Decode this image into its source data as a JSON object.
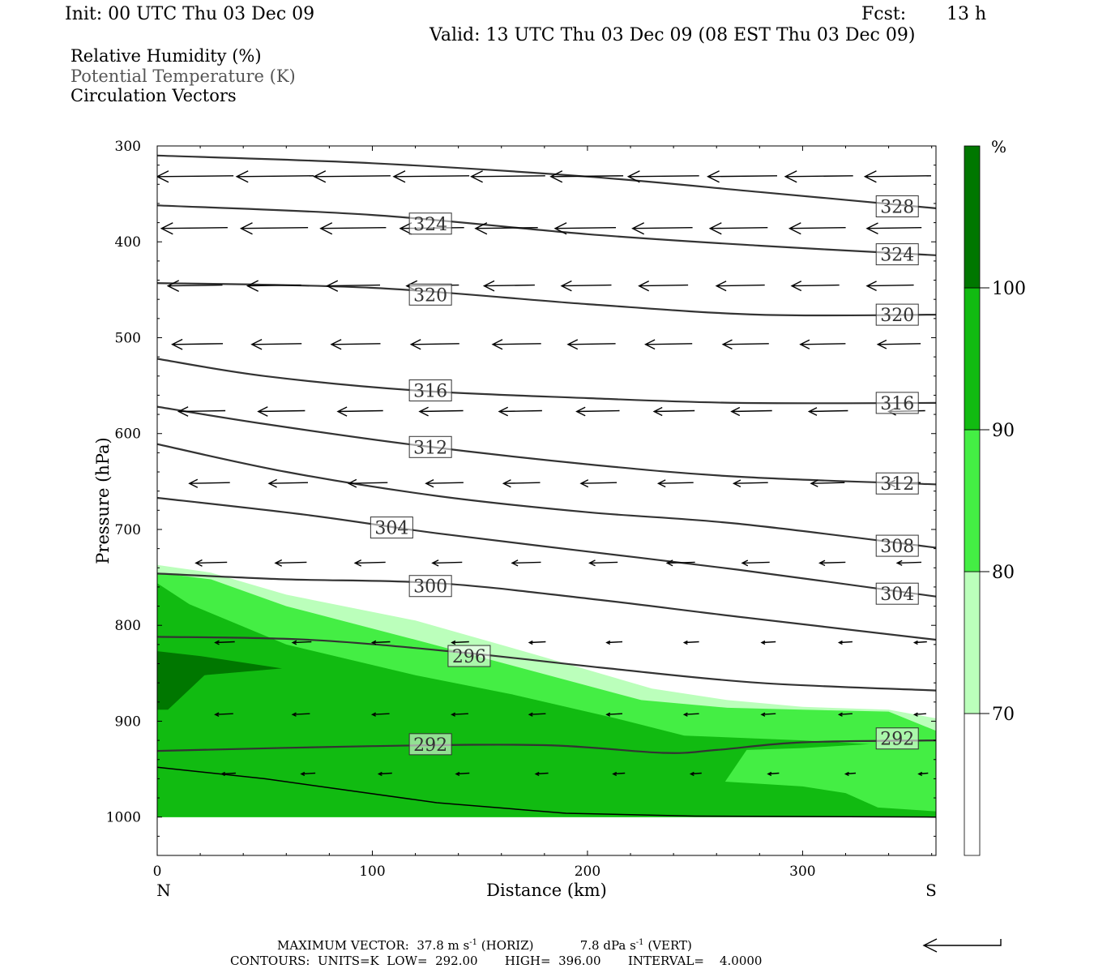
{
  "header": {
    "init": "Init: 00 UTC Thu 03 Dec 09",
    "fcst_label": "Fcst:",
    "fcst_value": "13 h",
    "valid": "Valid: 13 UTC Thu 03 Dec 09 (08 EST Thu 03 Dec 09)"
  },
  "legend_lines": {
    "rh": "Relative Humidity (%)",
    "theta": "Potential Temperature (K)",
    "vectors": "Circulation Vectors"
  },
  "footer": {
    "max_vector_label": "MAXIMUM VECTOR:",
    "horiz_value": "37.8 m s",
    "horiz_exp": "-1",
    "horiz_tag": "(HORIZ)",
    "vert_value": "7.8 dPa s",
    "vert_exp": "-1",
    "vert_tag": "(VERT)",
    "contours_line": "CONTOURS:  UNITS=K  LOW=  292.00       HIGH=  396.00       INTERVAL=    4.0000"
  },
  "chart_data": {
    "type": "cross-section",
    "xlabel": "Distance (km)",
    "ylabel": "Pressure (hPa)",
    "xlim": [
      0,
      362
    ],
    "ylim": [
      300,
      1040
    ],
    "x_ticks": [
      0,
      100,
      200,
      300
    ],
    "y_ticks": [
      300,
      400,
      500,
      600,
      700,
      800,
      900,
      1000
    ],
    "x_end_labels": {
      "left": "N",
      "right": "S"
    },
    "colorbar": {
      "unit": "%",
      "levels": [
        70,
        80,
        90,
        100
      ],
      "colors": [
        "#ffffff",
        "#bbffbb",
        "#44ee44",
        "#11bb11",
        "#007700"
      ]
    },
    "rh_fill": [
      {
        "level": "70-80",
        "color": "#bbffbb",
        "points": [
          [
            0,
            737
          ],
          [
            25,
            745
          ],
          [
            60,
            768
          ],
          [
            120,
            795
          ],
          [
            175,
            830
          ],
          [
            230,
            866
          ],
          [
            265,
            878
          ],
          [
            300,
            885
          ],
          [
            340,
            888
          ],
          [
            362,
            897
          ],
          [
            362,
            1000
          ],
          [
            0,
            1000
          ]
        ]
      },
      {
        "level": "80-90",
        "color": "#44ee44",
        "points": [
          [
            0,
            745
          ],
          [
            25,
            752
          ],
          [
            60,
            780
          ],
          [
            120,
            815
          ],
          [
            170,
            845
          ],
          [
            225,
            878
          ],
          [
            265,
            886
          ],
          [
            300,
            888
          ],
          [
            340,
            890
          ],
          [
            362,
            910
          ],
          [
            362,
            1000
          ],
          [
            0,
            1000
          ]
        ]
      },
      {
        "level": "90-100",
        "color": "#11bb11",
        "points": [
          [
            0,
            756
          ],
          [
            15,
            778
          ],
          [
            60,
            820
          ],
          [
            120,
            852
          ],
          [
            165,
            872
          ],
          [
            215,
            898
          ],
          [
            245,
            915
          ],
          [
            300,
            920
          ],
          [
            340,
            925
          ],
          [
            362,
            930
          ],
          [
            362,
            1000
          ],
          [
            0,
            1000
          ]
        ]
      },
      {
        "level": ">100",
        "color": "#007700",
        "points": [
          [
            0,
            827
          ],
          [
            20,
            832
          ],
          [
            58,
            845
          ],
          [
            22,
            852
          ],
          [
            5,
            888
          ],
          [
            0,
            888
          ]
        ]
      }
    ],
    "rh_dry_notch": {
      "color": "#44ee44",
      "points": [
        [
          264,
          1000
        ],
        [
          264,
          963
        ],
        [
          274,
          930
        ],
        [
          300,
          928
        ],
        [
          345,
          922
        ],
        [
          362,
          928
        ],
        [
          362,
          994
        ],
        [
          335,
          990
        ],
        [
          320,
          975
        ],
        [
          300,
          968
        ],
        [
          264,
          963
        ]
      ]
    },
    "theta_contours": [
      {
        "value": 328,
        "points": [
          [
            0,
            310
          ],
          [
            100,
            318
          ],
          [
            200,
            332
          ],
          [
            280,
            348
          ],
          [
            362,
            365
          ]
        ]
      },
      {
        "value": 324,
        "points": [
          [
            0,
            362
          ],
          [
            100,
            372
          ],
          [
            200,
            392
          ],
          [
            280,
            404
          ],
          [
            362,
            414
          ]
        ]
      },
      {
        "value": 320,
        "points": [
          [
            0,
            443
          ],
          [
            100,
            448
          ],
          [
            200,
            465
          ],
          [
            280,
            476
          ],
          [
            362,
            476
          ]
        ]
      },
      {
        "value": 316,
        "points": [
          [
            0,
            522
          ],
          [
            50,
            540
          ],
          [
            120,
            555
          ],
          [
            200,
            563
          ],
          [
            270,
            568
          ],
          [
            362,
            568
          ]
        ]
      },
      {
        "value": 312,
        "points": [
          [
            0,
            572
          ],
          [
            50,
            590
          ],
          [
            120,
            612
          ],
          [
            200,
            632
          ],
          [
            270,
            645
          ],
          [
            362,
            653
          ]
        ]
      },
      {
        "value": 308,
        "points": [
          [
            0,
            611
          ],
          [
            60,
            640
          ],
          [
            130,
            665
          ],
          [
            200,
            682
          ],
          [
            270,
            694
          ],
          [
            362,
            719
          ]
        ]
      },
      {
        "value": 304,
        "points": [
          [
            0,
            667
          ],
          [
            70,
            685
          ],
          [
            130,
            704
          ],
          [
            200,
            723
          ],
          [
            270,
            742
          ],
          [
            362,
            770
          ]
        ]
      },
      {
        "value": 300,
        "points": [
          [
            0,
            746
          ],
          [
            60,
            752
          ],
          [
            130,
            756
          ],
          [
            200,
            772
          ],
          [
            270,
            791
          ],
          [
            362,
            815
          ]
        ]
      },
      {
        "value": 296,
        "points": [
          [
            0,
            812
          ],
          [
            70,
            815
          ],
          [
            140,
            828
          ],
          [
            210,
            845
          ],
          [
            280,
            860
          ],
          [
            362,
            868
          ]
        ]
      },
      {
        "value": 292,
        "points": [
          [
            0,
            931
          ],
          [
            100,
            926
          ],
          [
            180,
            925
          ],
          [
            235,
            933
          ],
          [
            260,
            930
          ],
          [
            300,
            922
          ],
          [
            362,
            920
          ]
        ]
      }
    ],
    "theta_labels": [
      {
        "text": "328",
        "x": 344,
        "p": 363
      },
      {
        "text": "324",
        "x": 127,
        "p": 381
      },
      {
        "text": "324",
        "x": 344,
        "p": 413
      },
      {
        "text": "320",
        "x": 127,
        "p": 455
      },
      {
        "text": "320",
        "x": 344,
        "p": 476
      },
      {
        "text": "316",
        "x": 127,
        "p": 555
      },
      {
        "text": "316",
        "x": 344,
        "p": 568
      },
      {
        "text": "312",
        "x": 127,
        "p": 614
      },
      {
        "text": "312",
        "x": 344,
        "p": 652
      },
      {
        "text": "304",
        "x": 109,
        "p": 698
      },
      {
        "text": "308",
        "x": 344,
        "p": 717
      },
      {
        "text": "300",
        "x": 127,
        "p": 759
      },
      {
        "text": "304",
        "x": 344,
        "p": 767
      },
      {
        "text": "296",
        "x": 145,
        "p": 832
      },
      {
        "text": "292",
        "x": 127,
        "p": 924
      },
      {
        "text": "292",
        "x": 344,
        "p": 918
      }
    ],
    "ground": [
      [
        0,
        948
      ],
      [
        50,
        960
      ],
      [
        130,
        985
      ],
      [
        190,
        996
      ],
      [
        250,
        999
      ],
      [
        362,
        1000
      ]
    ],
    "vector_rows": [
      {
        "p": 332,
        "x": [
          0,
          37,
          73,
          110,
          146,
          183,
          219,
          256,
          292,
          329
        ],
        "u": [
          -0.98,
          -0.99,
          -0.98,
          -0.97,
          -0.95,
          -0.93,
          -0.91,
          -0.89,
          -0.87,
          -0.85
        ]
      },
      {
        "p": 386,
        "x": [
          2,
          39,
          76,
          113,
          148,
          185,
          221,
          257,
          294,
          330
        ],
        "u": [
          -0.85,
          -0.86,
          -0.84,
          -0.82,
          -0.8,
          -0.78,
          -0.77,
          -0.74,
          -0.72,
          -0.7
        ]
      },
      {
        "p": 446,
        "x": [
          5,
          42,
          79,
          116,
          152,
          188,
          224,
          260,
          295,
          330
        ],
        "u": [
          -0.7,
          -0.69,
          -0.68,
          -0.67,
          -0.65,
          -0.64,
          -0.63,
          -0.62,
          -0.61,
          -0.6
        ]
      },
      {
        "p": 507,
        "x": [
          7,
          44,
          81,
          118,
          156,
          191,
          227,
          263,
          299,
          335
        ],
        "u": [
          -0.65,
          -0.64,
          -0.63,
          -0.62,
          -0.62,
          -0.61,
          -0.6,
          -0.59,
          -0.58,
          -0.55
        ]
      },
      {
        "p": 577,
        "x": [
          10,
          47,
          84,
          122,
          159,
          195,
          231,
          267,
          303,
          340
        ],
        "u": [
          -0.6,
          -0.6,
          -0.58,
          -0.56,
          -0.55,
          -0.55,
          -0.52,
          -0.52,
          -0.5,
          -0.47
        ]
      },
      {
        "p": 652,
        "x": [
          15,
          52,
          89,
          125,
          161,
          197,
          233,
          268,
          304,
          340
        ],
        "u": [
          -0.52,
          -0.5,
          -0.5,
          -0.48,
          -0.47,
          -0.46,
          -0.45,
          -0.44,
          -0.43,
          -0.41
        ]
      },
      {
        "p": 735,
        "x": [
          18,
          55,
          92,
          128,
          165,
          201,
          237,
          272,
          308,
          344
        ],
        "u": [
          -0.4,
          -0.4,
          -0.39,
          -0.38,
          -0.37,
          -0.36,
          -0.36,
          -0.35,
          -0.33,
          -0.31
        ]
      },
      {
        "p": 818,
        "x": [
          27,
          63,
          100,
          137,
          173,
          209,
          245,
          281,
          317,
          352
        ],
        "u": [
          -0.25,
          -0.24,
          -0.23,
          -0.22,
          -0.21,
          -0.2,
          -0.19,
          -0.18,
          -0.17,
          -0.16
        ]
      },
      {
        "p": 893,
        "x": [
          27,
          63,
          100,
          137,
          173,
          209,
          245,
          281,
          317,
          352
        ],
        "u": [
          -0.23,
          -0.22,
          -0.22,
          -0.21,
          -0.21,
          -0.2,
          -0.19,
          -0.18,
          -0.17,
          -0.15
        ]
      },
      {
        "p": 955,
        "x": [
          30,
          67,
          103,
          139,
          176,
          212,
          248,
          284,
          320,
          354
        ],
        "u": [
          -0.18,
          -0.18,
          -0.17,
          -0.17,
          -0.16,
          -0.15,
          -0.14,
          -0.14,
          -0.13,
          -0.12
        ]
      }
    ]
  }
}
